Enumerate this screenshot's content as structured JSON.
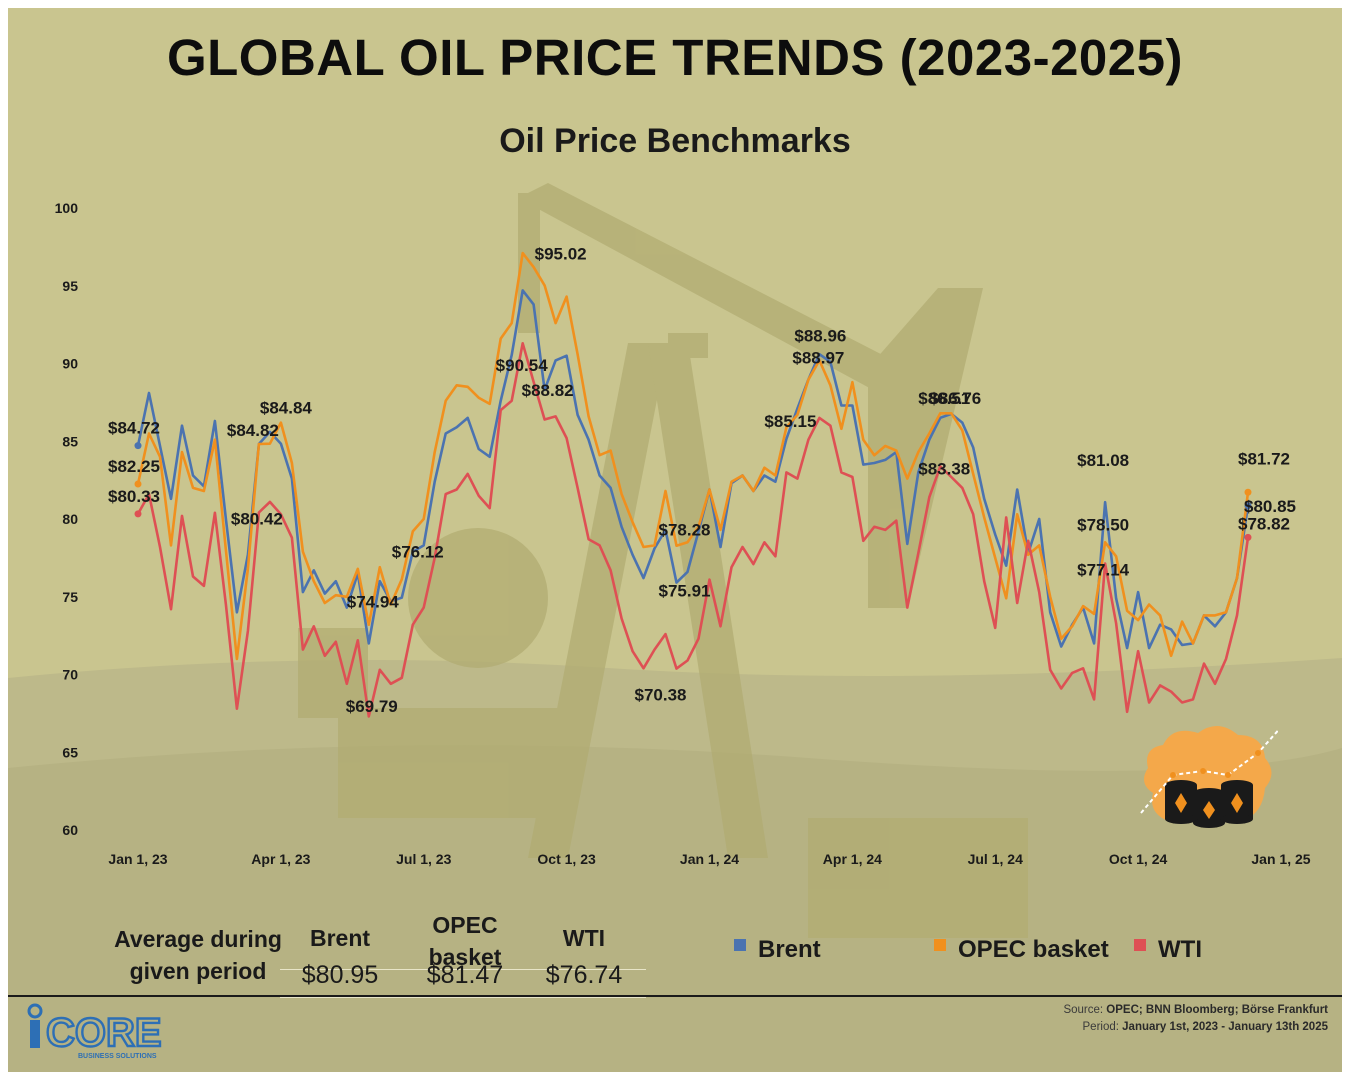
{
  "title": "GLOBAL OIL PRICE TRENDS (2023-2025)",
  "chart_data": {
    "type": "line",
    "title": "Oil Price Benchmarks",
    "xlabel": "",
    "ylabel": "",
    "ylim": [
      60,
      100
    ],
    "yticks": [
      60,
      65,
      70,
      75,
      80,
      85,
      90,
      95,
      100
    ],
    "xticks": [
      {
        "label": "Jan 1, 23",
        "week": 0
      },
      {
        "label": "Apr 1, 23",
        "week": 13
      },
      {
        "label": "Jul 1, 23",
        "week": 26
      },
      {
        "label": "Oct 1, 23",
        "week": 39
      },
      {
        "label": "Jan 1, 24",
        "week": 52
      },
      {
        "label": "Apr 1, 24",
        "week": 65
      },
      {
        "label": "Jul 1, 24",
        "week": 78
      },
      {
        "label": "Oct 1, 24",
        "week": 91
      },
      {
        "label": "Jan 1, 25",
        "week": 104
      }
    ],
    "x_unit": "weeks since Jan 1, 2023",
    "series": [
      {
        "name": "Brent",
        "color": "#4b73b0",
        "values": [
          84.72,
          88.1,
          84.7,
          81.3,
          86.0,
          82.8,
          82.1,
          86.3,
          80.0,
          74.0,
          77.7,
          84.82,
          85.6,
          84.84,
          82.6,
          75.3,
          76.7,
          75.2,
          76.0,
          74.3,
          76.5,
          72.0,
          76.0,
          74.7,
          74.94,
          77.9,
          78.3,
          82.4,
          85.5,
          85.9,
          86.5,
          84.5,
          84.0,
          87.6,
          90.54,
          94.7,
          93.8,
          88.3,
          90.2,
          90.5,
          86.7,
          85.1,
          82.8,
          82.0,
          79.5,
          77.7,
          76.2,
          78.1,
          79.3,
          75.91,
          76.6,
          79.2,
          81.9,
          78.2,
          82.3,
          82.8,
          81.8,
          82.8,
          82.4,
          85.15,
          87.1,
          88.97,
          90.6,
          90.1,
          87.3,
          87.3,
          83.5,
          83.6,
          83.8,
          84.3,
          78.4,
          83.0,
          85.1,
          86.51,
          86.76,
          86.2,
          84.6,
          81.3,
          79.0,
          77.0,
          81.9,
          77.8,
          80.0,
          74.0,
          71.8,
          73.2,
          74.3,
          72.0,
          81.08,
          74.9,
          71.7,
          75.3,
          71.7,
          73.2,
          72.9,
          71.9,
          72.0,
          73.8,
          73.1,
          74.0,
          76.2,
          80.85
        ]
      },
      {
        "name": "OPEC basket",
        "color": "#f0901e",
        "values": [
          82.25,
          85.5,
          84.0,
          78.3,
          84.3,
          82.0,
          81.8,
          85.1,
          78.0,
          71.0,
          76.8,
          84.82,
          84.84,
          86.2,
          83.6,
          77.9,
          76.0,
          74.6,
          75.1,
          75.0,
          76.8,
          73.2,
          76.9,
          74.5,
          76.12,
          79.2,
          80.0,
          84.3,
          87.6,
          88.6,
          88.5,
          87.8,
          87.4,
          91.6,
          92.6,
          97.1,
          96.2,
          95.02,
          92.6,
          94.3,
          90.6,
          86.6,
          84.1,
          84.4,
          81.6,
          79.8,
          78.2,
          78.3,
          81.8,
          78.28,
          78.5,
          79.5,
          81.9,
          79.3,
          82.4,
          82.8,
          81.8,
          83.3,
          82.8,
          85.9,
          86.7,
          88.96,
          90.2,
          88.6,
          85.8,
          88.8,
          85.1,
          84.1,
          84.7,
          84.4,
          82.6,
          84.3,
          85.5,
          86.8,
          86.8,
          85.7,
          82.9,
          80.1,
          77.5,
          74.9,
          80.3,
          77.7,
          78.3,
          75.0,
          72.3,
          73.1,
          74.4,
          73.9,
          78.5,
          77.6,
          74.1,
          73.5,
          74.5,
          73.8,
          71.2,
          73.4,
          72.0,
          73.8,
          73.8,
          74.0,
          76.2,
          81.72
        ]
      },
      {
        "name": "WTI",
        "color": "#de5054",
        "values": [
          80.33,
          81.6,
          78.2,
          74.2,
          80.2,
          76.3,
          75.7,
          80.4,
          74.5,
          67.8,
          72.8,
          80.42,
          81.1,
          80.3,
          78.8,
          71.6,
          73.1,
          71.2,
          72.1,
          69.4,
          72.2,
          67.3,
          70.3,
          69.4,
          69.79,
          73.2,
          74.3,
          77.5,
          81.6,
          81.9,
          82.9,
          81.5,
          80.7,
          87.0,
          87.6,
          91.3,
          88.82,
          86.4,
          86.6,
          85.2,
          82.0,
          78.7,
          78.3,
          76.7,
          73.6,
          71.5,
          70.4,
          71.6,
          72.6,
          70.38,
          70.9,
          72.3,
          76.1,
          73.1,
          76.9,
          78.2,
          77.1,
          78.5,
          77.6,
          83.0,
          82.6,
          85.1,
          86.5,
          86.0,
          83.0,
          82.7,
          78.6,
          79.5,
          79.3,
          79.9,
          74.3,
          77.8,
          81.4,
          83.38,
          82.7,
          82.0,
          80.3,
          76.0,
          73.0,
          80.1,
          74.6,
          78.6,
          75.3,
          70.3,
          69.1,
          70.1,
          70.4,
          68.4,
          77.14,
          73.3,
          67.6,
          71.5,
          68.2,
          69.3,
          68.9,
          68.2,
          68.4,
          70.7,
          69.4,
          71.0,
          73.8,
          78.82
        ]
      }
    ],
    "annotations": [
      {
        "text": "$84.72",
        "series": "Brent",
        "week": 0
      },
      {
        "text": "$82.25",
        "series": "OPEC basket",
        "week": 0
      },
      {
        "text": "$80.33",
        "series": "WTI",
        "week": 0
      },
      {
        "text": "$84.84",
        "series": "OPEC basket",
        "week": 12
      },
      {
        "text": "$84.82",
        "series": "Brent",
        "week": 11
      },
      {
        "text": "$80.42",
        "series": "WTI",
        "week": 11
      },
      {
        "text": "$76.12",
        "series": "OPEC basket",
        "week": 24
      },
      {
        "text": "$74.94",
        "series": "Brent",
        "week": 24
      },
      {
        "text": "$69.79",
        "series": "WTI",
        "week": 24
      },
      {
        "text": "$95.02",
        "series": "OPEC basket",
        "week": 37
      },
      {
        "text": "$90.54",
        "series": "Brent",
        "week": 34
      },
      {
        "text": "$88.82",
        "series": "WTI",
        "week": 36
      },
      {
        "text": "$78.28",
        "series": "OPEC basket",
        "week": 49
      },
      {
        "text": "$75.91",
        "series": "Brent",
        "week": 49
      },
      {
        "text": "$70.38",
        "series": "WTI",
        "week": 49
      },
      {
        "text": "$88.97",
        "series": "Brent",
        "week": 61
      },
      {
        "text": "$88.96",
        "series": "OPEC basket",
        "week": 61
      },
      {
        "text": "$85.15",
        "series": "Brent",
        "week": 59
      },
      {
        "text": "$86.76",
        "series": "Brent",
        "week": 74
      },
      {
        "text": "$86.51",
        "series": "Brent",
        "week": 73
      },
      {
        "text": "$83.38",
        "series": "WTI",
        "week": 73
      },
      {
        "text": "$81.08",
        "series": "Brent",
        "week": 88
      },
      {
        "text": "$78.50",
        "series": "OPEC basket",
        "week": 88
      },
      {
        "text": "$77.14",
        "series": "WTI",
        "week": 88
      },
      {
        "text": "$81.72",
        "series": "OPEC basket",
        "week": 101
      },
      {
        "text": "$80.85",
        "series": "Brent",
        "week": 101
      },
      {
        "text": "$78.82",
        "series": "WTI",
        "week": 101
      }
    ]
  },
  "averages": {
    "row_label_line1": "Average during",
    "row_label_line2": "given period",
    "headers": [
      "Brent",
      "OPEC basket",
      "WTI"
    ],
    "opec_header_line1": "OPEC",
    "opec_header_line2": "basket",
    "values": [
      "$80.95",
      "$81.47",
      "$76.74"
    ]
  },
  "legend": [
    {
      "label": "Brent",
      "color": "#4b73b0"
    },
    {
      "label": "OPEC basket",
      "color": "#f0901e"
    },
    {
      "label": "WTI",
      "color": "#de5054"
    }
  ],
  "logo": {
    "wordmark": "CORE",
    "tagline": "BUSINESS SOLUTIONS"
  },
  "source": {
    "source_label": "Source:",
    "source_text": "OPEC; BNN Bloomberg; Börse Frankfurt",
    "period_label": "Period:",
    "period_text": "January 1st, 2023 - January 13th 2025"
  }
}
